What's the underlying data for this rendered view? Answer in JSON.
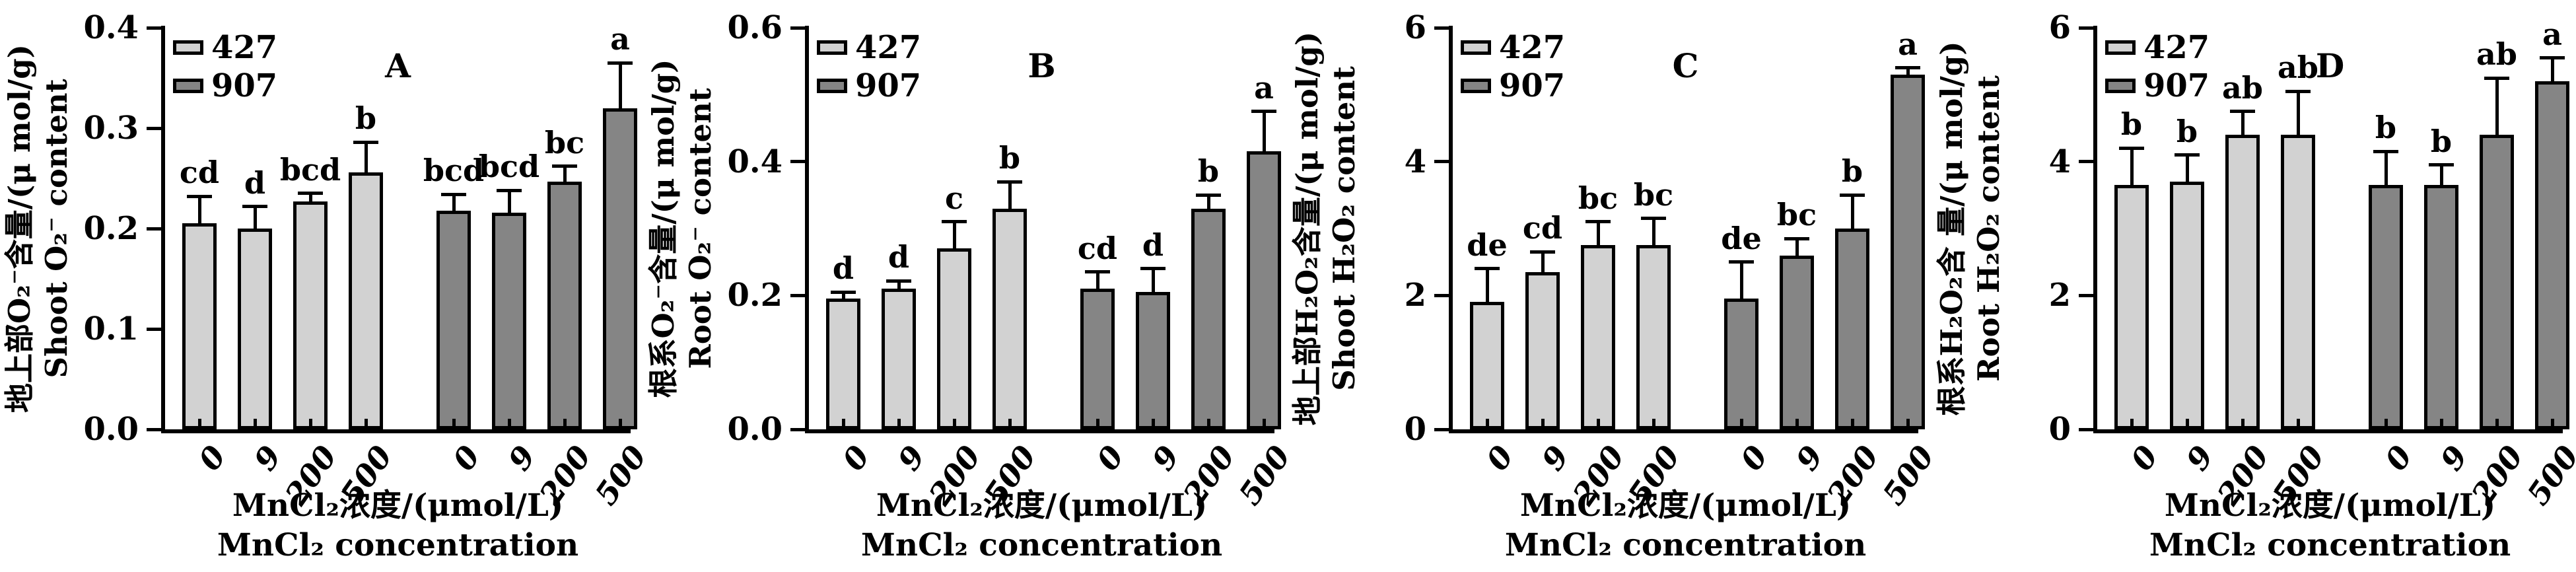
{
  "figure": {
    "background": "#ffffff",
    "ink_color": "#000000",
    "legend": {
      "position": "top-left",
      "items": [
        {
          "label": "427",
          "color": "#d2d2d2"
        },
        {
          "label": "907",
          "color": "#858585"
        }
      ]
    },
    "panel_letters": [
      "A",
      "B",
      "C",
      "D"
    ]
  },
  "chart_data": [
    {
      "type": "bar",
      "panel_label": "A",
      "ylabel_zh": "地上部O₂⁻含量/(μ mol/g)",
      "ylabel_en": "Shoot O₂⁻ content",
      "xlabel_zh": "MnCl₂浓度/(μmol/L)",
      "xlabel_en": "MnCl₂ concentration",
      "ylim": [
        0,
        0.4
      ],
      "yticks": [
        "0.0",
        "0.1",
        "0.2",
        "0.3",
        "0.4"
      ],
      "grid": false,
      "legend_position": "top-left",
      "categories": [
        "0",
        "9",
        "200",
        "500",
        "0",
        "9",
        "200",
        "500"
      ],
      "series": [
        {
          "name": "427",
          "values": [
            0.205,
            0.2,
            0.227,
            0.256
          ],
          "errors": [
            0.027,
            0.022,
            0.008,
            0.03
          ],
          "sig_letters": [
            "cd",
            "d",
            "bcd",
            "b"
          ]
        },
        {
          "name": "907",
          "values": [
            0.218,
            0.216,
            0.247,
            0.32
          ],
          "errors": [
            0.016,
            0.022,
            0.015,
            0.045
          ],
          "sig_letters": [
            "bcd",
            "bcd",
            "bc",
            "a"
          ]
        }
      ]
    },
    {
      "type": "bar",
      "panel_label": "B",
      "ylabel_zh": "根系O₂⁻含量/(μ mol/g)",
      "ylabel_en": "Root O₂⁻ content",
      "xlabel_zh": "MnCl₂浓度/(μmol/L)",
      "xlabel_en": "MnCl₂ concentration",
      "ylim": [
        0,
        0.6
      ],
      "yticks": [
        "0.0",
        "0.2",
        "0.4",
        "0.6"
      ],
      "grid": false,
      "legend_position": "top-left",
      "categories": [
        "0",
        "9",
        "200",
        "500",
        "0",
        "9",
        "200",
        "500"
      ],
      "series": [
        {
          "name": "427",
          "values": [
            0.195,
            0.21,
            0.27,
            0.33
          ],
          "errors": [
            0.01,
            0.012,
            0.04,
            0.04
          ],
          "sig_letters": [
            "d",
            "d",
            "c",
            "b"
          ]
        },
        {
          "name": "907",
          "values": [
            0.21,
            0.205,
            0.33,
            0.415
          ],
          "errors": [
            0.025,
            0.035,
            0.02,
            0.06
          ],
          "sig_letters": [
            "cd",
            "d",
            "b",
            "a"
          ]
        }
      ]
    },
    {
      "type": "bar",
      "panel_label": "C",
      "ylabel_zh": "地上部H₂O₂含量/(μ mol/g)",
      "ylabel_en": "Shoot H₂O₂ content",
      "xlabel_zh": "MnCl₂浓度/(μmol/L)",
      "xlabel_en": "MnCl₂ concentration",
      "ylim": [
        0,
        6
      ],
      "yticks": [
        "0",
        "2",
        "4",
        "6"
      ],
      "grid": false,
      "legend_position": "top-left",
      "categories": [
        "0",
        "9",
        "200",
        "500",
        "0",
        "9",
        "200",
        "500"
      ],
      "series": [
        {
          "name": "427",
          "values": [
            1.9,
            2.35,
            2.75,
            2.75
          ],
          "errors": [
            0.5,
            0.3,
            0.35,
            0.4
          ],
          "sig_letters": [
            "de",
            "cd",
            "bc",
            "bc"
          ]
        },
        {
          "name": "907",
          "values": [
            1.95,
            2.6,
            3.0,
            5.3
          ],
          "errors": [
            0.55,
            0.25,
            0.5,
            0.1
          ],
          "sig_letters": [
            "de",
            "bc",
            "b",
            "a"
          ]
        }
      ]
    },
    {
      "type": "bar",
      "panel_label": "D",
      "ylabel_zh": "根系H₂O₂含 量/(μ mol/g)",
      "ylabel_en": "Root H₂O₂ content",
      "xlabel_zh": "MnCl₂浓度/(μmol/L)",
      "xlabel_en": "MnCl₂ concentration",
      "ylim": [
        0,
        6
      ],
      "yticks": [
        "0",
        "2",
        "4",
        "6"
      ],
      "grid": false,
      "legend_position": "top-left",
      "categories": [
        "0",
        "9",
        "200",
        "500",
        "0",
        "9",
        "200",
        "500"
      ],
      "series": [
        {
          "name": "427",
          "values": [
            3.65,
            3.7,
            4.4,
            4.4
          ],
          "errors": [
            0.55,
            0.4,
            0.35,
            0.65
          ],
          "sig_letters": [
            "b",
            "b",
            "ab",
            "ab"
          ]
        },
        {
          "name": "907",
          "values": [
            3.65,
            3.65,
            4.4,
            5.2
          ],
          "errors": [
            0.5,
            0.3,
            0.85,
            0.35
          ],
          "sig_letters": [
            "b",
            "b",
            "ab",
            "a"
          ]
        }
      ]
    }
  ]
}
